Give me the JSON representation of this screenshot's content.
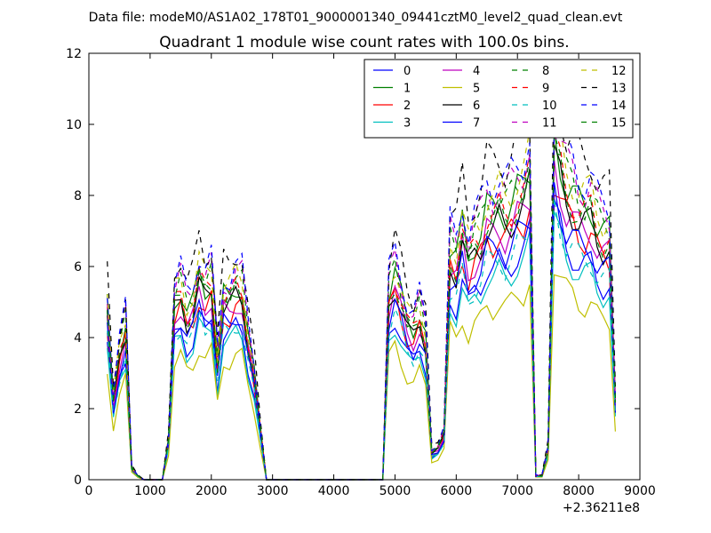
{
  "chart_data": {
    "type": "line",
    "supertitle": "Data file: modeM0/AS1A02_178T01_9000001340_09441cztM0_level2_quad_clean.evt",
    "title": "Quadrant 1 module wise count rates with 100.0s bins.",
    "xlabel": "",
    "ylabel": "",
    "x_offset_label": "+2.36211e8",
    "xlim": [
      0,
      9000
    ],
    "ylim": [
      0,
      12
    ],
    "xticks": [
      0,
      1000,
      2000,
      3000,
      4000,
      5000,
      6000,
      7000,
      8000,
      9000
    ],
    "xtick_labels": [
      "0",
      "1000",
      "2000",
      "3000",
      "4000",
      "5000",
      "6000",
      "7000",
      "8000",
      "9000"
    ],
    "yticks": [
      0,
      2,
      4,
      6,
      8,
      10,
      12
    ],
    "ytick_labels": [
      "0",
      "2",
      "4",
      "6",
      "8",
      "10",
      "12"
    ],
    "legend_location": "upper-right",
    "legend_columns": 4,
    "x": [
      300,
      400,
      500,
      600,
      700,
      800,
      900,
      1000,
      1100,
      1200,
      1300,
      1400,
      1500,
      1600,
      1700,
      1800,
      1900,
      2000,
      2100,
      2200,
      2300,
      2400,
      2500,
      2600,
      2700,
      2800,
      2900,
      3000,
      3100,
      3200,
      3300,
      3400,
      3500,
      3600,
      3700,
      3800,
      3900,
      4000,
      4100,
      4200,
      4300,
      4400,
      4500,
      4600,
      4700,
      4800,
      4900,
      5000,
      5100,
      5200,
      5300,
      5400,
      5500,
      5600,
      5700,
      5800,
      5900,
      6000,
      6100,
      6200,
      6300,
      6400,
      6500,
      6600,
      6700,
      6800,
      6900,
      7000,
      7100,
      7200,
      7300,
      7400,
      7500,
      7600,
      7700,
      7800,
      7900,
      8000,
      8100,
      8200,
      8300,
      8400,
      8500,
      8600
    ],
    "base_profile": [
      4.4,
      2.0,
      3.2,
      3.9,
      0.3,
      0.1,
      0,
      0,
      0,
      0,
      1.0,
      4.5,
      4.8,
      4.2,
      4.4,
      5.2,
      4.8,
      5.0,
      3.0,
      4.6,
      4.6,
      4.9,
      4.8,
      3.6,
      2.7,
      1.3,
      0,
      0,
      0,
      0,
      0,
      0,
      0,
      0,
      0,
      0,
      0,
      0,
      0,
      0,
      0,
      0,
      0,
      0,
      0,
      0,
      4.7,
      5.2,
      4.6,
      4.0,
      3.8,
      4.2,
      3.6,
      0.7,
      0.8,
      1.2,
      5.8,
      5.5,
      6.4,
      5.6,
      6.0,
      6.2,
      6.8,
      6.7,
      6.9,
      6.7,
      6.9,
      7.2,
      7.3,
      7.8,
      0.1,
      0.1,
      0.8,
      8.6,
      8.0,
      7.4,
      7.2,
      6.9,
      6.8,
      6.9,
      6.4,
      6.2,
      6.2,
      2.0
    ],
    "series": [
      {
        "name": "0",
        "color": "#0000ff",
        "dash": "solid",
        "scale": 0.88
      },
      {
        "name": "1",
        "color": "#008000",
        "dash": "solid",
        "scale": 1.12
      },
      {
        "name": "2",
        "color": "#ff0000",
        "dash": "solid",
        "scale": 1.0
      },
      {
        "name": "3",
        "color": "#00bfbf",
        "dash": "solid",
        "scale": 0.84
      },
      {
        "name": "4",
        "color": "#bf00bf",
        "dash": "solid",
        "scale": 1.02
      },
      {
        "name": "5",
        "color": "#bfbf00",
        "dash": "solid",
        "scale": 0.72
      },
      {
        "name": "6",
        "color": "#000000",
        "dash": "solid",
        "scale": 1.05
      },
      {
        "name": "7",
        "color": "#0000ff",
        "dash": "solid",
        "scale": 0.95
      },
      {
        "name": "8",
        "color": "#008000",
        "dash": "dashed",
        "scale": 1.15
      },
      {
        "name": "9",
        "color": "#ff0000",
        "dash": "dashed",
        "scale": 1.1
      },
      {
        "name": "10",
        "color": "#00bfbf",
        "dash": "dashed",
        "scale": 0.9
      },
      {
        "name": "11",
        "color": "#bf00bf",
        "dash": "dashed",
        "scale": 1.2
      },
      {
        "name": "12",
        "color": "#bfbf00",
        "dash": "dashed",
        "scale": 1.18
      },
      {
        "name": "13",
        "color": "#000000",
        "dash": "dashed",
        "scale": 1.32
      },
      {
        "name": "14",
        "color": "#0000ff",
        "dash": "dashed",
        "scale": 1.24
      },
      {
        "name": "15",
        "color": "#008000",
        "dash": "dashed",
        "scale": 1.08
      }
    ]
  }
}
